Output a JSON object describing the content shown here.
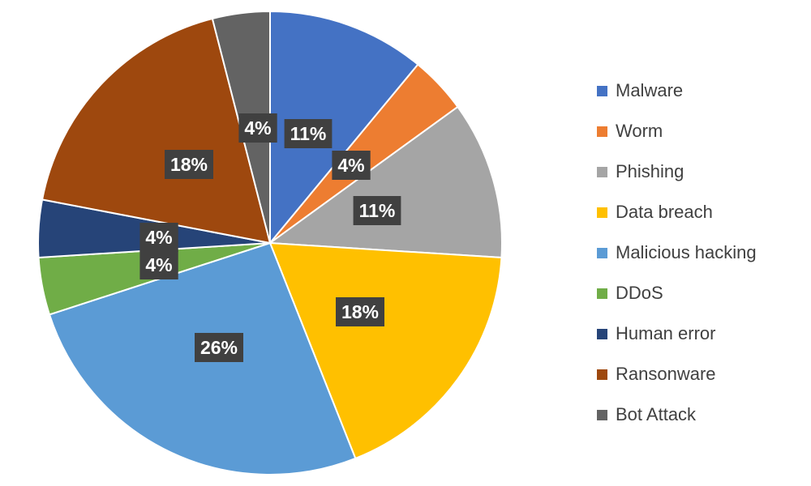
{
  "chart_data": {
    "type": "pie",
    "title": "",
    "legend_position": "right",
    "categories": [
      "Malware",
      "Worm",
      "Phishing",
      "Data breach",
      "Malicious hacking",
      "DDoS",
      "Human error",
      "Ransonware",
      "Bot Attack"
    ],
    "values": [
      11,
      4,
      11,
      18,
      26,
      4,
      4,
      18,
      4
    ],
    "data_labels": [
      "11%",
      "4%",
      "11%",
      "18%",
      "26%",
      "4%",
      "4%",
      "18%",
      "4%"
    ],
    "colors": [
      "#4472C4",
      "#ED7D31",
      "#A5A5A5",
      "#FFC000",
      "#5B9BD5",
      "#70AD47",
      "#264478",
      "#9E480E",
      "#636363"
    ]
  }
}
